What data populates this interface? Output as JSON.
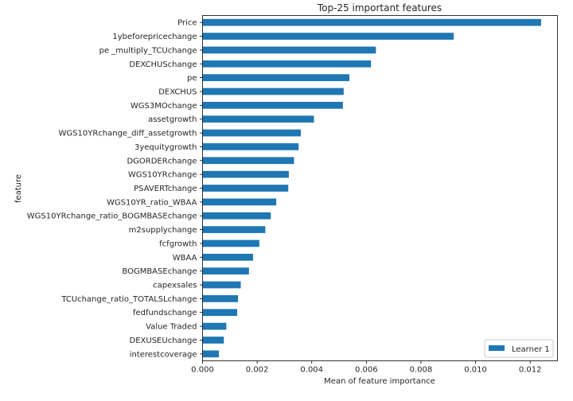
{
  "chart_data": {
    "type": "bar",
    "orientation": "horizontal",
    "title": "Top-25 important features",
    "xlabel": "Mean of feature importance",
    "ylabel": "feature",
    "xlim": [
      0,
      0.013
    ],
    "xticks": [
      0,
      0.002,
      0.004,
      0.006,
      0.008,
      0.01,
      0.012
    ],
    "xtick_labels": [
      "0.000",
      "0.002",
      "0.004",
      "0.006",
      "0.008",
      "0.010",
      "0.012"
    ],
    "grid": false,
    "legend_position": "bottom-right",
    "categories": [
      "Price",
      "1ybeforepricechange",
      "pe _multiply_TCUchange",
      "DEXCHUSchange",
      "pe",
      "DEXCHUS",
      "WGS3MOchange",
      "assetgrowth",
      "WGS10YRchange_diff_assetgrowth",
      "3yequitygrowth",
      "DGORDERchange",
      "WGS10YRchange",
      "PSAVERTchange",
      "WGS10YR_ratio_WBAA",
      "WGS10YRchange_ratio_BOGMBASEchange",
      "m2supplychange",
      "fcfgrowth",
      "WBAA",
      "BOGMBASEchange",
      "capexsales",
      "TCUchange_ratio_TOTALSLchange",
      "fedfundschange",
      "Value Traded",
      "DEXUSEUchange",
      "interestcoverage"
    ],
    "series": [
      {
        "name": "Learner 1",
        "color": "#1f77b4",
        "values": [
          0.0124,
          0.0092,
          0.00635,
          0.00617,
          0.00538,
          0.00517,
          0.00514,
          0.00408,
          0.0036,
          0.00352,
          0.00335,
          0.00316,
          0.00314,
          0.0027,
          0.0025,
          0.0023,
          0.00208,
          0.00185,
          0.0017,
          0.0014,
          0.0013,
          0.00127,
          0.00087,
          0.00078,
          0.0006
        ]
      }
    ]
  }
}
